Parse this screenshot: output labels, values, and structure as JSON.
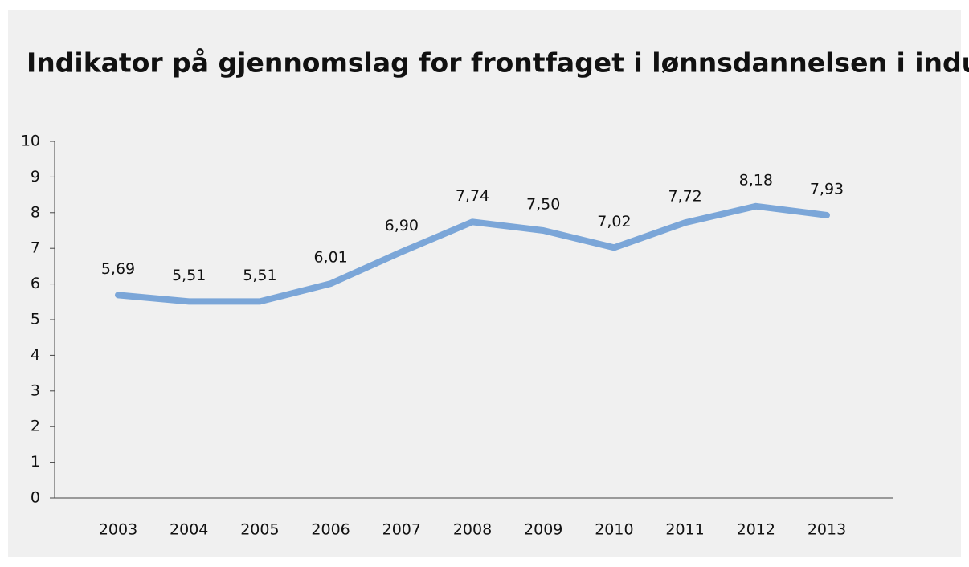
{
  "chart_data": {
    "type": "line",
    "title": "Indikator på gjennomslag for frontfaget i lønnsdannelsen i industrien",
    "categories": [
      "2003",
      "2004",
      "2005",
      "2006",
      "2007",
      "2008",
      "2009",
      "2010",
      "2011",
      "2012",
      "2013"
    ],
    "series": [
      {
        "name": "Indikator",
        "color": "#7ba6d8",
        "values": [
          5.69,
          5.51,
          5.51,
          6.01,
          6.9,
          7.74,
          7.5,
          7.02,
          7.72,
          8.18,
          7.93
        ],
        "value_labels": [
          "5,69",
          "5,51",
          "5,51",
          "6,01",
          "6,90",
          "7,74",
          "7,50",
          "7,02",
          "7,72",
          "8,18",
          "7,93"
        ]
      }
    ],
    "ylim": [
      0,
      10
    ],
    "yticks": [
      0,
      1,
      2,
      3,
      4,
      5,
      6,
      7,
      8,
      9,
      10
    ],
    "grid": false
  }
}
